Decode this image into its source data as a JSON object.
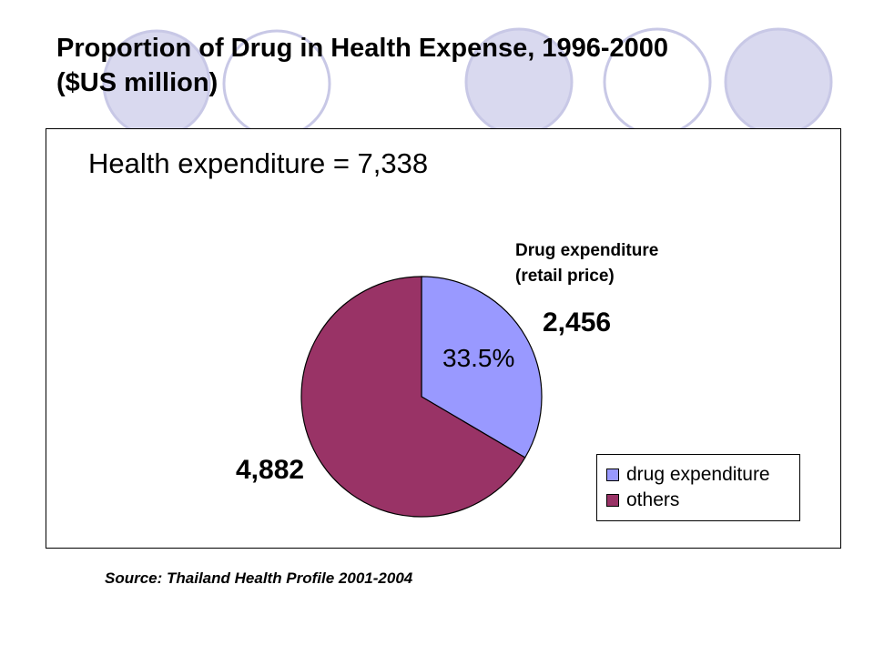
{
  "slide": {
    "title_line1": "Proportion of Drug in Health Expense, 1996-2000",
    "title_line2": "($US million)",
    "source": "Source: Thailand Health Profile 2001-2004",
    "decor_light": "#d9d9ef",
    "decor_dark": "#c8c8e6"
  },
  "chart_data": {
    "type": "pie",
    "title": "Health expenditure = 7,338",
    "total": 7338,
    "slices": [
      {
        "name": "drug expenditure",
        "value": 2456,
        "value_label": "2,456",
        "percent": 33.5,
        "percent_label": "33.5%",
        "color": "#9999ff"
      },
      {
        "name": "others",
        "value": 4882,
        "value_label": "4,882",
        "color": "#993366"
      }
    ],
    "annotation_line1": "Drug expenditure",
    "annotation_line2": "(retail price)",
    "legend_position": "bottom-right"
  }
}
